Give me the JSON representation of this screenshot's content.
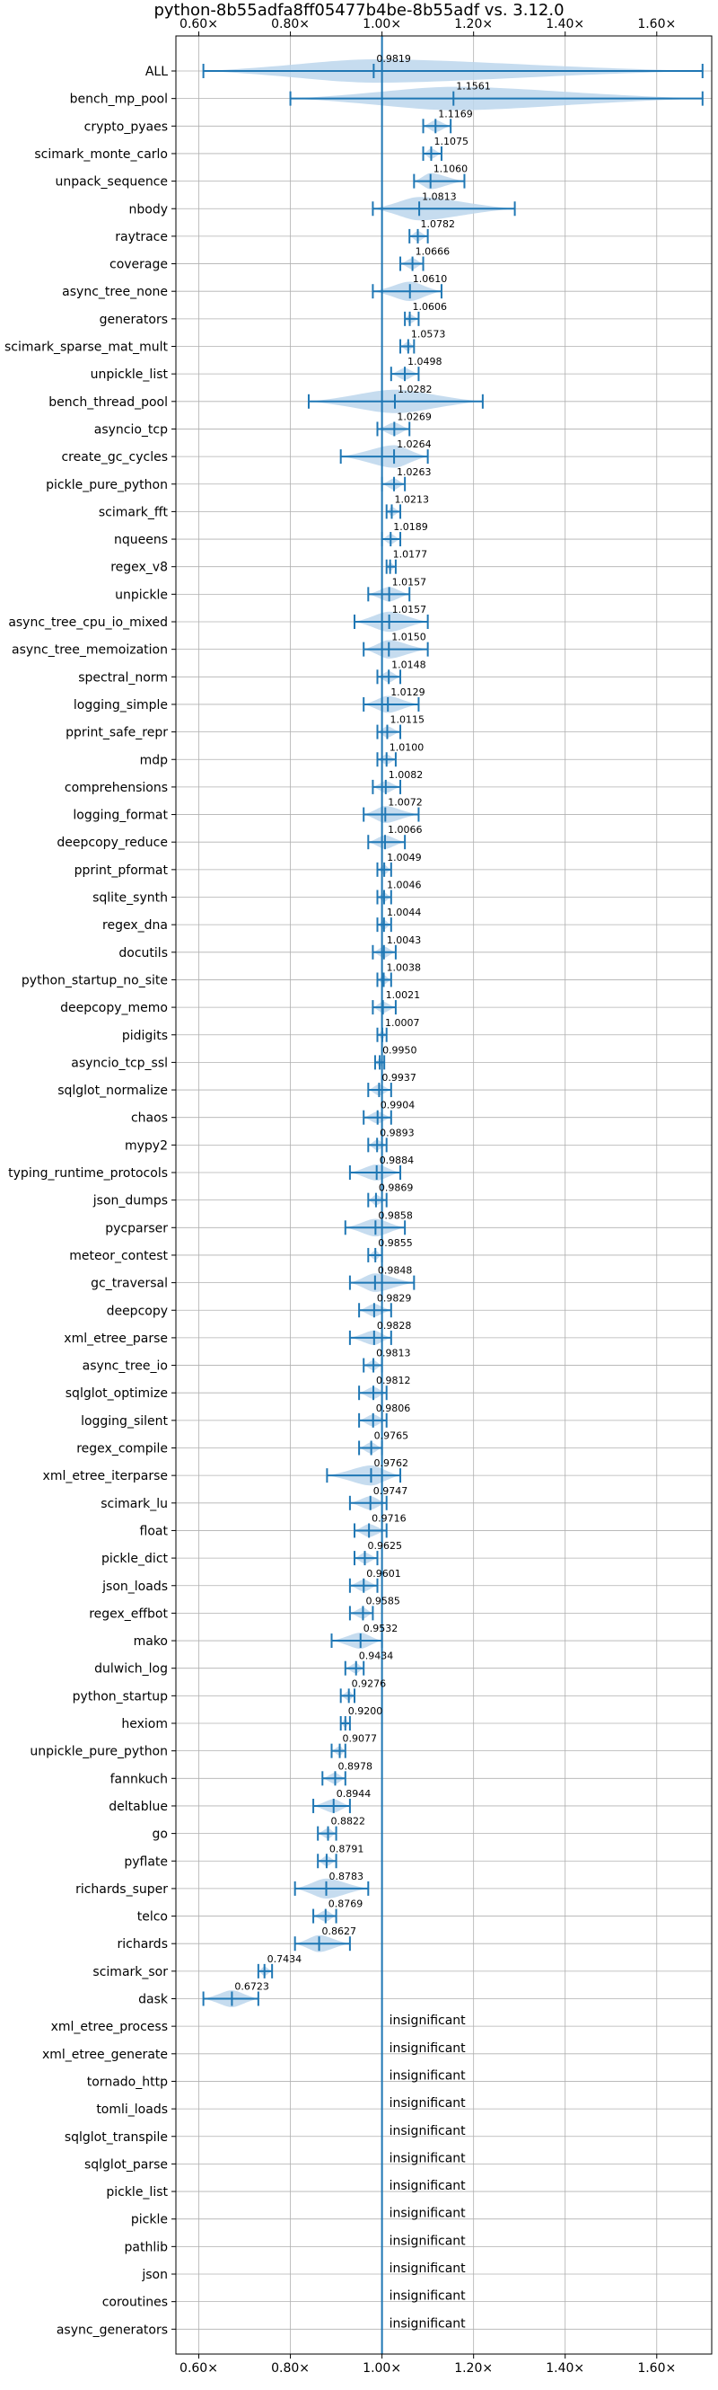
{
  "chart_data": {
    "type": "violin",
    "title": "python-8b55adfa8ff05477b4be-8b55adf vs. 3.12.0",
    "xlabel": "",
    "ylabel": "",
    "xlim": [
      0.55,
      1.72
    ],
    "x_ticks": [
      0.6,
      0.8,
      1.0,
      1.2,
      1.4,
      1.6
    ],
    "x_tick_labels": [
      "0.60×",
      "0.80×",
      "1.00×",
      "1.20×",
      "1.40×",
      "1.60×"
    ],
    "reference_line": 1.0,
    "grid": true,
    "colors": {
      "accent": "#1f77b4",
      "violin_fill": "#bcd6ec",
      "grid": "#b0b0b0"
    },
    "benchmarks": [
      {
        "name": "ALL",
        "value": 0.9819,
        "label": "0.9819",
        "min": 0.61,
        "max": 1.7
      },
      {
        "name": "bench_mp_pool",
        "value": 1.1561,
        "label": "1.1561",
        "min": 0.8,
        "max": 1.7
      },
      {
        "name": "crypto_pyaes",
        "value": 1.1169,
        "label": "1.1169",
        "min": 1.09,
        "max": 1.15
      },
      {
        "name": "scimark_monte_carlo",
        "value": 1.1075,
        "label": "1.1075",
        "min": 1.09,
        "max": 1.13
      },
      {
        "name": "unpack_sequence",
        "value": 1.106,
        "label": "1.1060",
        "min": 1.07,
        "max": 1.18
      },
      {
        "name": "nbody",
        "value": 1.0813,
        "label": "1.0813",
        "min": 0.98,
        "max": 1.29
      },
      {
        "name": "raytrace",
        "value": 1.0782,
        "label": "1.0782",
        "min": 1.06,
        "max": 1.1
      },
      {
        "name": "coverage",
        "value": 1.0666,
        "label": "1.0666",
        "min": 1.04,
        "max": 1.09
      },
      {
        "name": "async_tree_none",
        "value": 1.061,
        "label": "1.0610",
        "min": 0.98,
        "max": 1.13
      },
      {
        "name": "generators",
        "value": 1.0606,
        "label": "1.0606",
        "min": 1.05,
        "max": 1.08
      },
      {
        "name": "scimark_sparse_mat_mult",
        "value": 1.0573,
        "label": "1.0573",
        "min": 1.04,
        "max": 1.07
      },
      {
        "name": "unpickle_list",
        "value": 1.0498,
        "label": "1.0498",
        "min": 1.02,
        "max": 1.08
      },
      {
        "name": "bench_thread_pool",
        "value": 1.0282,
        "label": "1.0282",
        "min": 0.84,
        "max": 1.22
      },
      {
        "name": "asyncio_tcp",
        "value": 1.0269,
        "label": "1.0269",
        "min": 0.99,
        "max": 1.06
      },
      {
        "name": "create_gc_cycles",
        "value": 1.0264,
        "label": "1.0264",
        "min": 0.91,
        "max": 1.1
      },
      {
        "name": "pickle_pure_python",
        "value": 1.0263,
        "label": "1.0263",
        "min": 1.0,
        "max": 1.05
      },
      {
        "name": "scimark_fft",
        "value": 1.0213,
        "label": "1.0213",
        "min": 1.01,
        "max": 1.04
      },
      {
        "name": "nqueens",
        "value": 1.0189,
        "label": "1.0189",
        "min": 1.0,
        "max": 1.04
      },
      {
        "name": "regex_v8",
        "value": 1.0177,
        "label": "1.0177",
        "min": 1.01,
        "max": 1.03
      },
      {
        "name": "unpickle",
        "value": 1.0157,
        "label": "1.0157",
        "min": 0.97,
        "max": 1.06
      },
      {
        "name": "async_tree_cpu_io_mixed",
        "value": 1.0157,
        "label": "1.0157",
        "min": 0.94,
        "max": 1.1
      },
      {
        "name": "async_tree_memoization",
        "value": 1.015,
        "label": "1.0150",
        "min": 0.96,
        "max": 1.1
      },
      {
        "name": "spectral_norm",
        "value": 1.0148,
        "label": "1.0148",
        "min": 0.99,
        "max": 1.04
      },
      {
        "name": "logging_simple",
        "value": 1.0129,
        "label": "1.0129",
        "min": 0.96,
        "max": 1.08
      },
      {
        "name": "pprint_safe_repr",
        "value": 1.0115,
        "label": "1.0115",
        "min": 0.99,
        "max": 1.04
      },
      {
        "name": "mdp",
        "value": 1.01,
        "label": "1.0100",
        "min": 0.99,
        "max": 1.03
      },
      {
        "name": "comprehensions",
        "value": 1.0082,
        "label": "1.0082",
        "min": 0.98,
        "max": 1.04
      },
      {
        "name": "logging_format",
        "value": 1.0072,
        "label": "1.0072",
        "min": 0.96,
        "max": 1.08
      },
      {
        "name": "deepcopy_reduce",
        "value": 1.0066,
        "label": "1.0066",
        "min": 0.97,
        "max": 1.05
      },
      {
        "name": "pprint_pformat",
        "value": 1.0049,
        "label": "1.0049",
        "min": 0.99,
        "max": 1.02
      },
      {
        "name": "sqlite_synth",
        "value": 1.0046,
        "label": "1.0046",
        "min": 0.99,
        "max": 1.02
      },
      {
        "name": "regex_dna",
        "value": 1.0044,
        "label": "1.0044",
        "min": 0.99,
        "max": 1.02
      },
      {
        "name": "docutils",
        "value": 1.0043,
        "label": "1.0043",
        "min": 0.98,
        "max": 1.03
      },
      {
        "name": "python_startup_no_site",
        "value": 1.0038,
        "label": "1.0038",
        "min": 0.99,
        "max": 1.02
      },
      {
        "name": "deepcopy_memo",
        "value": 1.0021,
        "label": "1.0021",
        "min": 0.98,
        "max": 1.03
      },
      {
        "name": "pidigits",
        "value": 1.0007,
        "label": "1.0007",
        "min": 0.99,
        "max": 1.01
      },
      {
        "name": "asyncio_tcp_ssl",
        "value": 0.995,
        "label": "0.9950",
        "min": 0.985,
        "max": 1.005
      },
      {
        "name": "sqlglot_normalize",
        "value": 0.9937,
        "label": "0.9937",
        "min": 0.97,
        "max": 1.02
      },
      {
        "name": "chaos",
        "value": 0.9904,
        "label": "0.9904",
        "min": 0.96,
        "max": 1.02
      },
      {
        "name": "mypy2",
        "value": 0.9893,
        "label": "0.9893",
        "min": 0.97,
        "max": 1.01
      },
      {
        "name": "typing_runtime_protocols",
        "value": 0.9884,
        "label": "0.9884",
        "min": 0.93,
        "max": 1.04
      },
      {
        "name": "json_dumps",
        "value": 0.9869,
        "label": "0.9869",
        "min": 0.97,
        "max": 1.01
      },
      {
        "name": "pycparser",
        "value": 0.9858,
        "label": "0.9858",
        "min": 0.92,
        "max": 1.05
      },
      {
        "name": "meteor_contest",
        "value": 0.9855,
        "label": "0.9855",
        "min": 0.97,
        "max": 1.0
      },
      {
        "name": "gc_traversal",
        "value": 0.9848,
        "label": "0.9848",
        "min": 0.93,
        "max": 1.07
      },
      {
        "name": "deepcopy",
        "value": 0.9829,
        "label": "0.9829",
        "min": 0.95,
        "max": 1.02
      },
      {
        "name": "xml_etree_parse",
        "value": 0.9828,
        "label": "0.9828",
        "min": 0.93,
        "max": 1.02
      },
      {
        "name": "async_tree_io",
        "value": 0.9813,
        "label": "0.9813",
        "min": 0.96,
        "max": 1.0
      },
      {
        "name": "sqlglot_optimize",
        "value": 0.9812,
        "label": "0.9812",
        "min": 0.95,
        "max": 1.01
      },
      {
        "name": "logging_silent",
        "value": 0.9806,
        "label": "0.9806",
        "min": 0.95,
        "max": 1.01
      },
      {
        "name": "regex_compile",
        "value": 0.9765,
        "label": "0.9765",
        "min": 0.95,
        "max": 1.0
      },
      {
        "name": "xml_etree_iterparse",
        "value": 0.9762,
        "label": "0.9762",
        "min": 0.88,
        "max": 1.04
      },
      {
        "name": "scimark_lu",
        "value": 0.9747,
        "label": "0.9747",
        "min": 0.93,
        "max": 1.01
      },
      {
        "name": "float",
        "value": 0.9716,
        "label": "0.9716",
        "min": 0.94,
        "max": 1.01
      },
      {
        "name": "pickle_dict",
        "value": 0.9625,
        "label": "0.9625",
        "min": 0.94,
        "max": 0.99
      },
      {
        "name": "json_loads",
        "value": 0.9601,
        "label": "0.9601",
        "min": 0.93,
        "max": 0.99
      },
      {
        "name": "regex_effbot",
        "value": 0.9585,
        "label": "0.9585",
        "min": 0.93,
        "max": 0.98
      },
      {
        "name": "mako",
        "value": 0.9532,
        "label": "0.9532",
        "min": 0.89,
        "max": 1.0
      },
      {
        "name": "dulwich_log",
        "value": 0.9434,
        "label": "0.9434",
        "min": 0.92,
        "max": 0.96
      },
      {
        "name": "python_startup",
        "value": 0.9276,
        "label": "0.9276",
        "min": 0.91,
        "max": 0.94
      },
      {
        "name": "hexiom",
        "value": 0.92,
        "label": "0.9200",
        "min": 0.91,
        "max": 0.93
      },
      {
        "name": "unpickle_pure_python",
        "value": 0.9077,
        "label": "0.9077",
        "min": 0.89,
        "max": 0.92
      },
      {
        "name": "fannkuch",
        "value": 0.8978,
        "label": "0.8978",
        "min": 0.87,
        "max": 0.92
      },
      {
        "name": "deltablue",
        "value": 0.8944,
        "label": "0.8944",
        "min": 0.85,
        "max": 0.93
      },
      {
        "name": "go",
        "value": 0.8822,
        "label": "0.8822",
        "min": 0.86,
        "max": 0.9
      },
      {
        "name": "pyflate",
        "value": 0.8791,
        "label": "0.8791",
        "min": 0.86,
        "max": 0.9
      },
      {
        "name": "richards_super",
        "value": 0.8783,
        "label": "0.8783",
        "min": 0.81,
        "max": 0.97
      },
      {
        "name": "telco",
        "value": 0.8769,
        "label": "0.8769",
        "min": 0.85,
        "max": 0.9
      },
      {
        "name": "richards",
        "value": 0.8627,
        "label": "0.8627",
        "min": 0.81,
        "max": 0.93
      },
      {
        "name": "scimark_sor",
        "value": 0.7434,
        "label": "0.7434",
        "min": 0.73,
        "max": 0.76
      },
      {
        "name": "dask",
        "value": 0.6723,
        "label": "0.6723",
        "min": 0.61,
        "max": 0.73
      },
      {
        "name": "xml_etree_process",
        "status": "insignificant"
      },
      {
        "name": "xml_etree_generate",
        "status": "insignificant"
      },
      {
        "name": "tornado_http",
        "status": "insignificant"
      },
      {
        "name": "tomli_loads",
        "status": "insignificant"
      },
      {
        "name": "sqlglot_transpile",
        "status": "insignificant"
      },
      {
        "name": "sqlglot_parse",
        "status": "insignificant"
      },
      {
        "name": "pickle_list",
        "status": "insignificant"
      },
      {
        "name": "pickle",
        "status": "insignificant"
      },
      {
        "name": "pathlib",
        "status": "insignificant"
      },
      {
        "name": "json",
        "status": "insignificant"
      },
      {
        "name": "coroutines",
        "status": "insignificant"
      },
      {
        "name": "async_generators",
        "status": "insignificant"
      }
    ]
  }
}
